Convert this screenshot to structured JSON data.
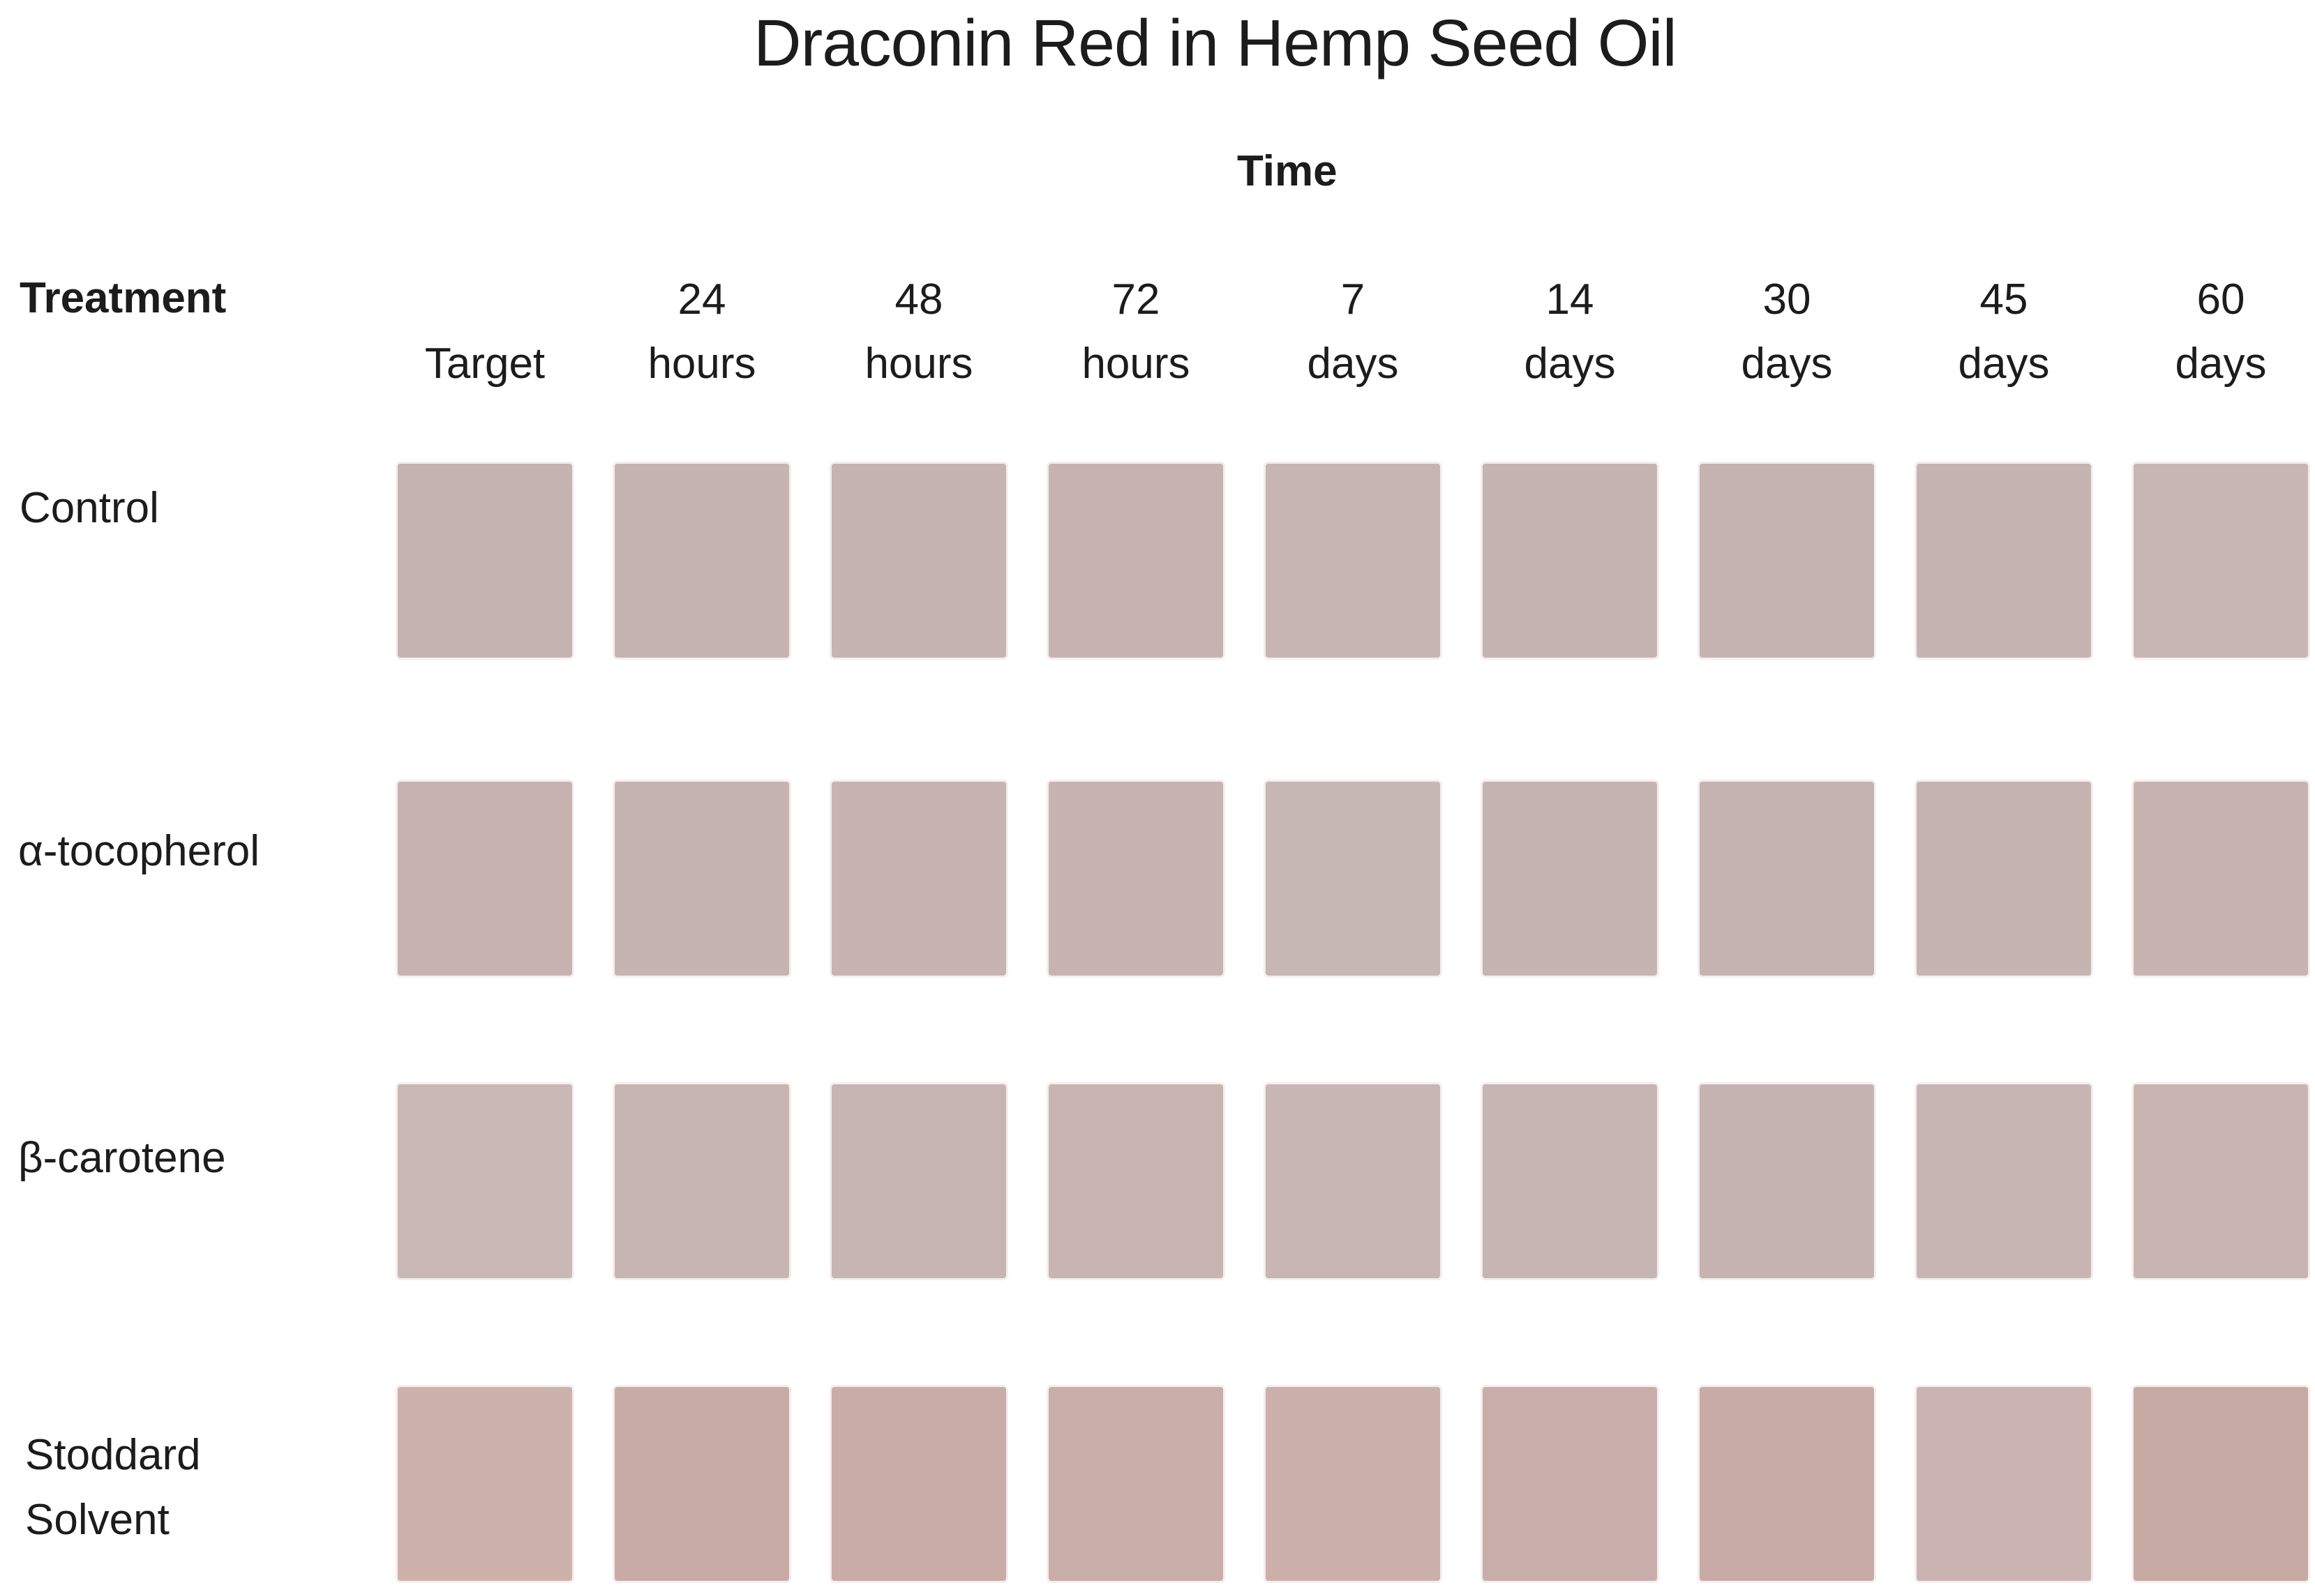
{
  "title": "Draconin Red in Hemp Seed Oil",
  "headers": {
    "time": "Time",
    "treatment": "Treatment"
  },
  "columns": [
    {
      "line1": "",
      "line2": "Target"
    },
    {
      "line1": "24",
      "line2": "hours"
    },
    {
      "line1": "48",
      "line2": "hours"
    },
    {
      "line1": "72",
      "line2": "hours"
    },
    {
      "line1": "7",
      "line2": "days"
    },
    {
      "line1": "14",
      "line2": "days"
    },
    {
      "line1": "30",
      "line2": "days"
    },
    {
      "line1": "45",
      "line2": "days"
    },
    {
      "line1": "60",
      "line2": "days"
    }
  ],
  "rows": [
    {
      "label": "Control",
      "label2": "",
      "cells": [
        "#c5b3b1",
        "#c6b4b1",
        "#c6b4b2",
        "#c6b3b1",
        "#c7b5b3",
        "#c6b4b2",
        "#c5b3b1",
        "#c6b4b2",
        "#c8b6b4"
      ]
    },
    {
      "label": "α-tocopherol",
      "label2": "",
      "cells": [
        "#c6b3b0",
        "#c6b4b1",
        "#c7b4b2",
        "#c7b4b2",
        "#c6b6b4",
        "#c6b4b2",
        "#c5b3b1",
        "#c6b4b1",
        "#c7b4b1"
      ]
    },
    {
      "label": "β-carotene",
      "label2": "",
      "cells": [
        "#cab8b4",
        "#c7b5b2",
        "#c7b5b3",
        "#c8b5b2",
        "#c7b6b4",
        "#c7b5b3",
        "#c6b4b2",
        "#c7b5b3",
        "#c8b5b2"
      ]
    },
    {
      "label": "Stoddard",
      "label2": "Solvent",
      "cells": [
        "#cdb2ab",
        "#c8aba6",
        "#c9aca7",
        "#c9ada8",
        "#cbafaa",
        "#c9adaa",
        "#c8aba6",
        "#cab3b1",
        "#c7a9a4"
      ]
    }
  ],
  "chart_data": {
    "type": "heatmap",
    "title": "Draconin Red in Hemp Seed Oil",
    "x_axis_label": "Time",
    "y_axis_label": "Treatment",
    "columns": [
      "Target",
      "24 hours",
      "48 hours",
      "72 hours",
      "7 days",
      "14 days",
      "30 days",
      "45 days",
      "60 days"
    ],
    "rows": [
      "Control",
      "α-tocopherol",
      "β-carotene",
      "Stoddard Solvent"
    ],
    "cell_colors": [
      [
        "#c5b3b1",
        "#c6b4b1",
        "#c6b4b2",
        "#c6b3b1",
        "#c7b5b3",
        "#c6b4b2",
        "#c5b3b1",
        "#c6b4b2",
        "#c8b6b4"
      ],
      [
        "#c6b3b0",
        "#c6b4b1",
        "#c7b4b2",
        "#c7b4b2",
        "#c6b6b4",
        "#c6b4b2",
        "#c5b3b1",
        "#c6b4b1",
        "#c7b4b1"
      ],
      [
        "#cab8b4",
        "#c7b5b2",
        "#c7b5b3",
        "#c8b5b2",
        "#c7b6b4",
        "#c7b5b3",
        "#c6b4b2",
        "#c7b5b3",
        "#c8b5b2"
      ],
      [
        "#cdb2ab",
        "#c8aba6",
        "#c9aca7",
        "#c9ada8",
        "#cbafaa",
        "#c9adaa",
        "#c8aba6",
        "#cab3b1",
        "#c7a9a4"
      ]
    ],
    "legend_position": "none",
    "grid": false
  }
}
